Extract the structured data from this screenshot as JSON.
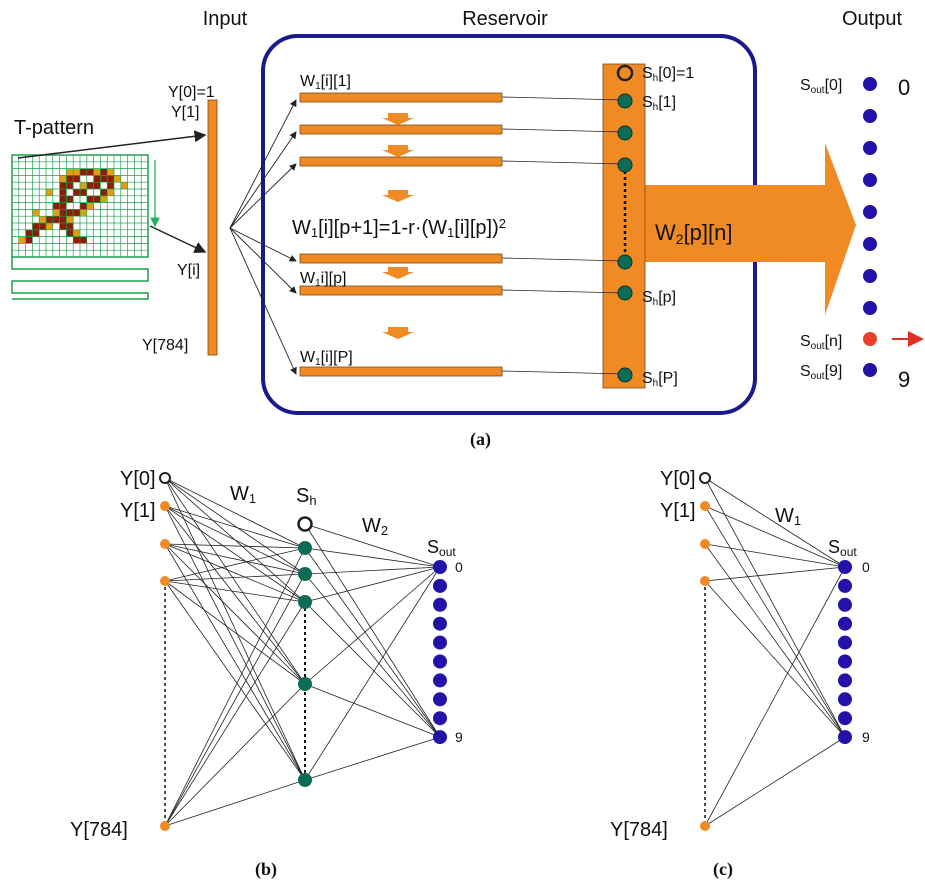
{
  "panel_a": {
    "input_title": "Input",
    "reservoir_title": "Reservoir",
    "output_title": "Output",
    "t_pattern": "T-pattern",
    "input_labels": [
      "Y[0]=1",
      "Y[1]",
      "Y[i]",
      "Y[784]"
    ],
    "weight_labels": [
      [
        "W",
        "1",
        "[i][1]"
      ],
      [
        "W",
        "1",
        "i][p]"
      ],
      [
        "W",
        "1",
        "[i][P]"
      ]
    ],
    "update_rule": [
      "W",
      "1",
      "[i][p+1]=1-r·(W",
      "1",
      "[i][p])",
      "2"
    ],
    "hidden_labels": [
      [
        "S",
        "h",
        "[0]=1"
      ],
      [
        "S",
        "h",
        "[1]"
      ],
      [
        "S",
        "h",
        "[p]"
      ],
      [
        "S",
        "h",
        "[P]"
      ]
    ],
    "output_weight": [
      "W",
      "2",
      "[p][n]"
    ],
    "output_labels": [
      [
        "S",
        "out",
        "[0]"
      ],
      [
        "S",
        "out",
        "[n]"
      ],
      [
        "S",
        "out",
        "[9]"
      ]
    ],
    "output_values": [
      "0",
      "9"
    ],
    "caption": "(a)"
  },
  "panel_b": {
    "input_labels": [
      "Y[0]",
      "Y[1]",
      "Y[784]"
    ],
    "w1": [
      "W",
      "1"
    ],
    "sh": [
      "S",
      "h"
    ],
    "w2": [
      "W",
      "2"
    ],
    "sout": [
      "S",
      "out"
    ],
    "output_indices": [
      "0",
      "9"
    ],
    "caption": "(b)"
  },
  "panel_c": {
    "input_labels": [
      "Y[0]",
      "Y[1]",
      "Y[784]"
    ],
    "w1": [
      "W",
      "1"
    ],
    "sout": [
      "S",
      "out"
    ],
    "output_indices": [
      "0",
      "9"
    ],
    "caption": "(c)"
  }
}
